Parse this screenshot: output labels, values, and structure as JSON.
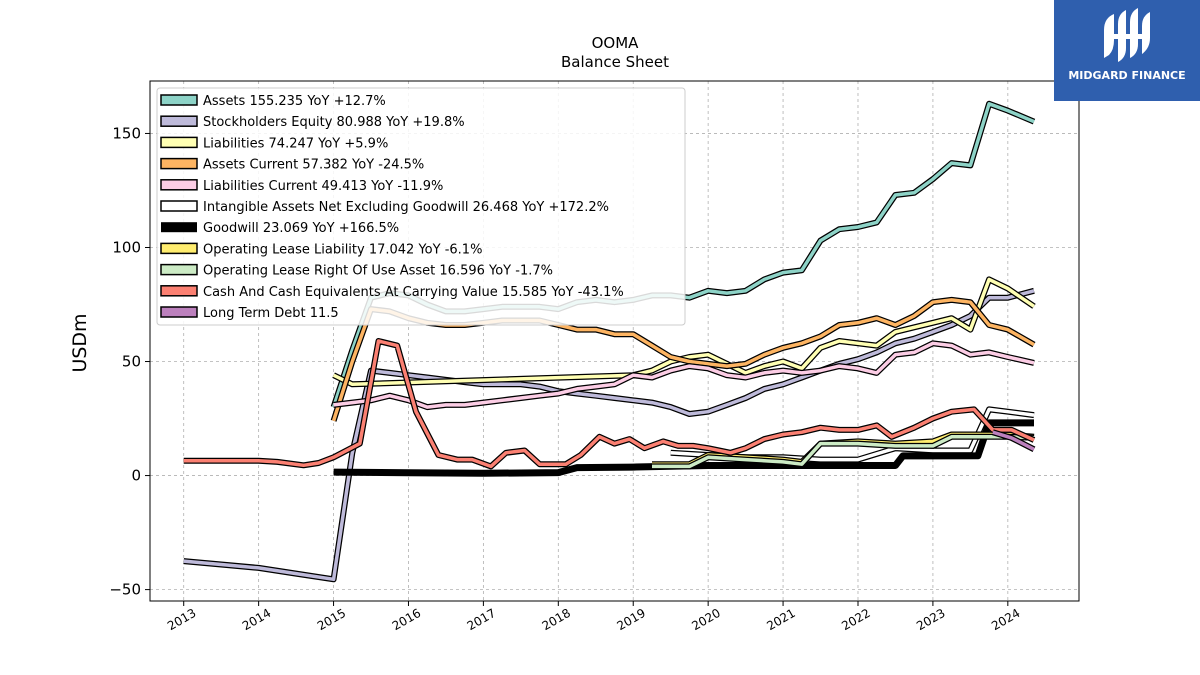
{
  "chart_data": {
    "type": "line",
    "title": "OOMA",
    "subtitle": "Balance  Sheet",
    "ylabel": "USDm",
    "xlabel": "",
    "ylim": [
      -55,
      173
    ],
    "xlim": [
      2012.55,
      2024.95
    ],
    "yticks": [
      -50,
      0,
      50,
      100,
      150
    ],
    "ytick_labels": [
      "−50",
      "0",
      "50",
      "100",
      "150"
    ],
    "xticks": [
      2013,
      2014,
      2015,
      2016,
      2017,
      2018,
      2019,
      2020,
      2021,
      2022,
      2023,
      2024
    ],
    "xtick_labels": [
      "2013",
      "2014",
      "2015",
      "2016",
      "2017",
      "2018",
      "2019",
      "2020",
      "2021",
      "2022",
      "2023",
      "2024"
    ],
    "grid": true,
    "legend_position": "top-left",
    "series": [
      {
        "name": "Assets  155.235 YoY +12.7%",
        "color": "#8dd3c7",
        "width": 3.5,
        "points": [
          [
            2015.0,
            30
          ],
          [
            2015.25,
            55
          ],
          [
            2015.5,
            78
          ],
          [
            2015.75,
            80
          ],
          [
            2016.0,
            79
          ],
          [
            2016.25,
            75
          ],
          [
            2016.5,
            72
          ],
          [
            2016.75,
            72
          ],
          [
            2017.0,
            73
          ],
          [
            2017.25,
            74
          ],
          [
            2017.5,
            74
          ],
          [
            2017.75,
            74
          ],
          [
            2018.0,
            73
          ],
          [
            2018.25,
            76
          ],
          [
            2018.5,
            77
          ],
          [
            2018.75,
            76
          ],
          [
            2019.0,
            77
          ],
          [
            2019.25,
            79
          ],
          [
            2019.5,
            79
          ],
          [
            2019.75,
            78
          ],
          [
            2020.0,
            81
          ],
          [
            2020.25,
            80
          ],
          [
            2020.5,
            81
          ],
          [
            2020.75,
            86
          ],
          [
            2021.0,
            89
          ],
          [
            2021.25,
            90
          ],
          [
            2021.5,
            103
          ],
          [
            2021.75,
            108
          ],
          [
            2022.0,
            109
          ],
          [
            2022.25,
            111
          ],
          [
            2022.5,
            123
          ],
          [
            2022.75,
            124
          ],
          [
            2023.0,
            130
          ],
          [
            2023.25,
            137
          ],
          [
            2023.5,
            136
          ],
          [
            2023.75,
            163
          ],
          [
            2024.0,
            160
          ],
          [
            2024.35,
            155.2
          ]
        ]
      },
      {
        "name": "Stockholders Equity  80.988 YoY +19.8%",
        "color": "#bebada",
        "width": 3.5,
        "points": [
          [
            2013.0,
            -37.5
          ],
          [
            2013.5,
            -39
          ],
          [
            2014.0,
            -40.5
          ],
          [
            2014.5,
            -43
          ],
          [
            2015.0,
            -45.5
          ],
          [
            2015.25,
            10
          ],
          [
            2015.5,
            46
          ],
          [
            2015.75,
            45
          ],
          [
            2016.0,
            44
          ],
          [
            2016.25,
            43
          ],
          [
            2016.5,
            42
          ],
          [
            2016.75,
            41
          ],
          [
            2017.0,
            40
          ],
          [
            2017.25,
            40
          ],
          [
            2017.5,
            40
          ],
          [
            2017.75,
            39
          ],
          [
            2018.0,
            37
          ],
          [
            2018.25,
            36
          ],
          [
            2018.5,
            35
          ],
          [
            2018.75,
            34
          ],
          [
            2019.0,
            33
          ],
          [
            2019.25,
            32
          ],
          [
            2019.5,
            30
          ],
          [
            2019.75,
            27
          ],
          [
            2020.0,
            28
          ],
          [
            2020.25,
            31
          ],
          [
            2020.5,
            34
          ],
          [
            2020.75,
            38
          ],
          [
            2021.0,
            40
          ],
          [
            2021.25,
            43
          ],
          [
            2021.5,
            46
          ],
          [
            2021.75,
            49
          ],
          [
            2022.0,
            51
          ],
          [
            2022.25,
            54
          ],
          [
            2022.5,
            58
          ],
          [
            2022.75,
            60
          ],
          [
            2023.0,
            63
          ],
          [
            2023.25,
            66
          ],
          [
            2023.5,
            70
          ],
          [
            2023.75,
            78
          ],
          [
            2024.0,
            78
          ],
          [
            2024.35,
            81
          ]
        ]
      },
      {
        "name": "Liabilities  74.247 YoY +5.9%",
        "color": "#ffffb3",
        "width": 3.5,
        "points": [
          [
            2015.0,
            44
          ],
          [
            2015.25,
            40
          ],
          [
            2019.0,
            44
          ],
          [
            2019.25,
            46
          ],
          [
            2019.5,
            50
          ],
          [
            2019.75,
            52
          ],
          [
            2020.0,
            53
          ],
          [
            2020.25,
            49
          ],
          [
            2020.5,
            45
          ],
          [
            2020.75,
            48
          ],
          [
            2021.0,
            50
          ],
          [
            2021.25,
            47
          ],
          [
            2021.5,
            56
          ],
          [
            2021.75,
            59
          ],
          [
            2022.0,
            58
          ],
          [
            2022.25,
            57
          ],
          [
            2022.5,
            63
          ],
          [
            2022.75,
            65
          ],
          [
            2023.0,
            67
          ],
          [
            2023.25,
            69
          ],
          [
            2023.5,
            64
          ],
          [
            2023.75,
            86
          ],
          [
            2024.0,
            82
          ],
          [
            2024.35,
            74.2
          ]
        ]
      },
      {
        "name": "Assets Current  57.382 YoY -24.5%",
        "color": "#fdb462",
        "width": 3.5,
        "points": [
          [
            2015.0,
            24
          ],
          [
            2015.25,
            50
          ],
          [
            2015.5,
            73
          ],
          [
            2015.75,
            72
          ],
          [
            2016.0,
            69
          ],
          [
            2016.25,
            67
          ],
          [
            2016.5,
            66
          ],
          [
            2016.75,
            66
          ],
          [
            2017.0,
            67
          ],
          [
            2017.25,
            68
          ],
          [
            2017.5,
            68
          ],
          [
            2017.75,
            68
          ],
          [
            2018.0,
            66
          ],
          [
            2018.25,
            64
          ],
          [
            2018.5,
            64
          ],
          [
            2018.75,
            62
          ],
          [
            2019.0,
            62
          ],
          [
            2019.25,
            57
          ],
          [
            2019.5,
            52
          ],
          [
            2019.75,
            50
          ],
          [
            2020.0,
            49
          ],
          [
            2020.25,
            48
          ],
          [
            2020.5,
            49
          ],
          [
            2020.75,
            53
          ],
          [
            2021.0,
            56
          ],
          [
            2021.25,
            58
          ],
          [
            2021.5,
            61
          ],
          [
            2021.75,
            66
          ],
          [
            2022.0,
            67
          ],
          [
            2022.25,
            69
          ],
          [
            2022.5,
            66
          ],
          [
            2022.75,
            70
          ],
          [
            2023.0,
            76
          ],
          [
            2023.25,
            77
          ],
          [
            2023.5,
            76
          ],
          [
            2023.75,
            66
          ],
          [
            2024.0,
            64
          ],
          [
            2024.35,
            57.4
          ]
        ]
      },
      {
        "name": "Liabilities Current  49.413 YoY -11.9%",
        "color": "#fccde5",
        "width": 3.5,
        "points": [
          [
            2015.0,
            31
          ],
          [
            2015.25,
            32
          ],
          [
            2015.5,
            33
          ],
          [
            2015.75,
            35
          ],
          [
            2016.0,
            33
          ],
          [
            2016.25,
            30
          ],
          [
            2016.5,
            31
          ],
          [
            2016.75,
            31
          ],
          [
            2017.0,
            32
          ],
          [
            2017.25,
            33
          ],
          [
            2017.5,
            34
          ],
          [
            2017.75,
            35
          ],
          [
            2018.0,
            36
          ],
          [
            2018.25,
            38
          ],
          [
            2018.5,
            39
          ],
          [
            2018.75,
            40
          ],
          [
            2019.0,
            44
          ],
          [
            2019.25,
            43
          ],
          [
            2019.5,
            46
          ],
          [
            2019.75,
            48
          ],
          [
            2020.0,
            47
          ],
          [
            2020.25,
            44
          ],
          [
            2020.5,
            43
          ],
          [
            2020.75,
            45
          ],
          [
            2021.0,
            46
          ],
          [
            2021.25,
            45
          ],
          [
            2021.5,
            46
          ],
          [
            2021.75,
            48
          ],
          [
            2022.0,
            47
          ],
          [
            2022.25,
            45
          ],
          [
            2022.5,
            53
          ],
          [
            2022.75,
            54
          ],
          [
            2023.0,
            58
          ],
          [
            2023.25,
            57
          ],
          [
            2023.5,
            53
          ],
          [
            2023.75,
            54
          ],
          [
            2024.0,
            52
          ],
          [
            2024.35,
            49.4
          ]
        ]
      },
      {
        "name": "Intangible Assets Net Excluding Goodwill  26.468 YoY +172.2%",
        "color": "#ffffff",
        "width": 3.5,
        "points": [
          [
            2019.5,
            10
          ],
          [
            2020.0,
            9
          ],
          [
            2020.5,
            8
          ],
          [
            2021.0,
            8
          ],
          [
            2021.5,
            7
          ],
          [
            2022.0,
            7
          ],
          [
            2022.5,
            12
          ],
          [
            2023.0,
            11
          ],
          [
            2023.5,
            11
          ],
          [
            2023.75,
            29
          ],
          [
            2024.0,
            28
          ],
          [
            2024.35,
            26.5
          ]
        ]
      },
      {
        "name": "Goodwill  23.069 YoY +166.5%",
        "color": "#000000",
        "width": 7,
        "points": [
          [
            2015.0,
            1.5
          ],
          [
            2016.0,
            1.2
          ],
          [
            2017.0,
            1.0
          ],
          [
            2018.0,
            1.3
          ],
          [
            2018.25,
            3.5
          ],
          [
            2019.0,
            3.7
          ],
          [
            2020.0,
            4.4
          ],
          [
            2021.0,
            4.4
          ],
          [
            2022.0,
            4.4
          ],
          [
            2022.5,
            4.4
          ],
          [
            2022.6,
            8.6
          ],
          [
            2023.0,
            8.6
          ],
          [
            2023.6,
            8.7
          ],
          [
            2023.75,
            23.1
          ],
          [
            2024.35,
            23.1
          ]
        ]
      },
      {
        "name": "Operating Lease Liability  17.042 YoY -6.1%",
        "color": "#ffed6f",
        "width": 3.5,
        "points": [
          [
            2019.25,
            5
          ],
          [
            2019.75,
            5
          ],
          [
            2020.0,
            9
          ],
          [
            2020.5,
            8
          ],
          [
            2021.0,
            7
          ],
          [
            2021.25,
            6
          ],
          [
            2021.5,
            14
          ],
          [
            2022.0,
            15
          ],
          [
            2022.5,
            14
          ],
          [
            2023.0,
            15
          ],
          [
            2023.25,
            18
          ],
          [
            2023.75,
            18
          ],
          [
            2024.0,
            18
          ],
          [
            2024.35,
            17
          ]
        ]
      },
      {
        "name": "Operating Lease Right Of Use Asset  16.596 YoY -1.7%",
        "color": "#ccebc5",
        "width": 3.5,
        "points": [
          [
            2019.25,
            4
          ],
          [
            2019.75,
            4
          ],
          [
            2020.0,
            8
          ],
          [
            2020.5,
            7
          ],
          [
            2021.0,
            6
          ],
          [
            2021.25,
            5
          ],
          [
            2021.5,
            14
          ],
          [
            2022.0,
            14
          ],
          [
            2022.5,
            13
          ],
          [
            2023.0,
            13
          ],
          [
            2023.25,
            17
          ],
          [
            2023.75,
            17
          ],
          [
            2024.0,
            17
          ],
          [
            2024.35,
            16.6
          ]
        ]
      },
      {
        "name": "Cash And Cash Equivalents At Carrying Value  15.585 YoY -43.1%",
        "color": "#fb8072",
        "width": 3.5,
        "points": [
          [
            2013.0,
            6.5
          ],
          [
            2013.5,
            6.5
          ],
          [
            2014.0,
            6.5
          ],
          [
            2014.25,
            6
          ],
          [
            2014.6,
            4.5
          ],
          [
            2014.8,
            5.5
          ],
          [
            2015.0,
            8
          ],
          [
            2015.35,
            14
          ],
          [
            2015.6,
            59
          ],
          [
            2015.85,
            57
          ],
          [
            2016.1,
            28
          ],
          [
            2016.4,
            9
          ],
          [
            2016.65,
            7
          ],
          [
            2016.85,
            7
          ],
          [
            2017.1,
            4
          ],
          [
            2017.3,
            10
          ],
          [
            2017.55,
            11
          ],
          [
            2017.75,
            5
          ],
          [
            2018.1,
            5
          ],
          [
            2018.3,
            9
          ],
          [
            2018.55,
            17
          ],
          [
            2018.75,
            14
          ],
          [
            2018.95,
            16
          ],
          [
            2019.15,
            12
          ],
          [
            2019.4,
            15
          ],
          [
            2019.6,
            13
          ],
          [
            2019.8,
            13
          ],
          [
            2020.0,
            12
          ],
          [
            2020.3,
            10
          ],
          [
            2020.5,
            12
          ],
          [
            2020.75,
            16
          ],
          [
            2021.0,
            18
          ],
          [
            2021.25,
            19
          ],
          [
            2021.5,
            21
          ],
          [
            2021.75,
            20
          ],
          [
            2022.0,
            20
          ],
          [
            2022.25,
            22
          ],
          [
            2022.45,
            17
          ],
          [
            2022.75,
            21
          ],
          [
            2023.0,
            25
          ],
          [
            2023.25,
            28
          ],
          [
            2023.55,
            29
          ],
          [
            2023.8,
            20
          ],
          [
            2024.05,
            20
          ],
          [
            2024.35,
            15.6
          ]
        ]
      },
      {
        "name": "Long Term Debt  11.5",
        "color": "#bc80bd",
        "width": 3.5,
        "points": [
          [
            2023.8,
            19
          ],
          [
            2024.05,
            16.5
          ],
          [
            2024.35,
            11.5
          ]
        ]
      }
    ]
  },
  "branding": {
    "logo_text": "MIDGARD FINANCE",
    "logo_color": "#2f5fae"
  }
}
